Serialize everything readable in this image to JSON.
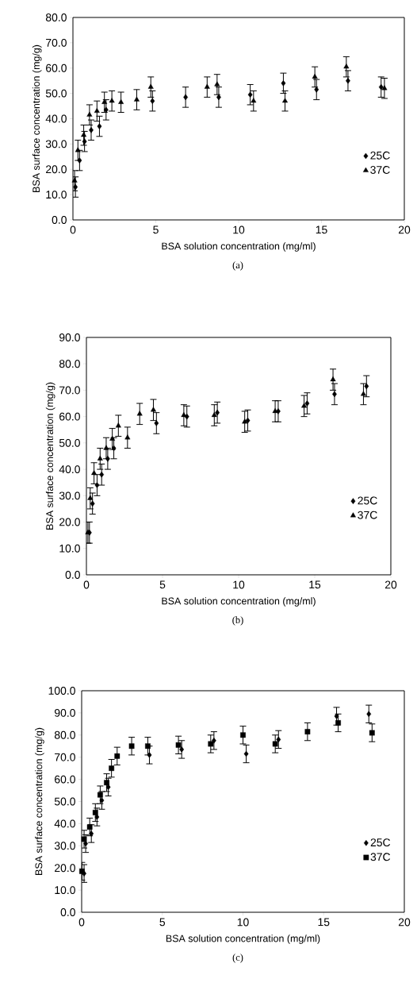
{
  "chart_data": [
    {
      "type": "scatter",
      "xlabel": "BSA solution concentration (mg/ml)",
      "ylabel": "BSA surface concentration (mg/g)",
      "annotations": [
        "(a)"
      ],
      "xlim": [
        0,
        20
      ],
      "xticks": [
        0,
        5,
        10,
        15,
        20
      ],
      "ylim": [
        0,
        80
      ],
      "yticks": [
        {
          "value": 0,
          "label": "0.0"
        },
        {
          "value": 10,
          "label": "10.0"
        },
        {
          "value": 20,
          "label": "20.0"
        },
        {
          "value": 30,
          "label": "30.0"
        },
        {
          "value": 40,
          "label": "40.0"
        },
        {
          "value": 50,
          "label": "50.0"
        },
        {
          "value": 60,
          "label": "60.0"
        },
        {
          "value": 70,
          "label": "70.0"
        },
        {
          "value": 80,
          "label": "80.0"
        }
      ],
      "legend": "right",
      "grid": false,
      "series": [
        {
          "name": "25C",
          "color": "#000000",
          "marker": "diamond",
          "x": [
            0.15,
            0.4,
            0.7,
            1.1,
            1.6,
            2.0,
            4.8,
            6.8,
            8.8,
            10.7,
            12.7,
            14.7,
            16.6,
            18.6
          ],
          "values": [
            13,
            23.5,
            31,
            35.5,
            37,
            43.5,
            47,
            48.5,
            48.5,
            49.5,
            54,
            51.5,
            55,
            52.5
          ],
          "errors": [
            4,
            4,
            4,
            4,
            4,
            4,
            4,
            4,
            4,
            4,
            4,
            4,
            4,
            4
          ]
        },
        {
          "name": "37C",
          "color": "#000000",
          "marker": "triangle",
          "x": [
            0.1,
            0.3,
            0.65,
            1.0,
            1.45,
            1.9,
            2.35,
            2.9,
            3.85,
            4.7,
            8.1,
            8.7,
            10.9,
            12.8,
            14.6,
            16.5,
            18.8
          ],
          "values": [
            15.5,
            27.5,
            33.5,
            41.5,
            43,
            46.5,
            47,
            46.5,
            47.5,
            52.5,
            52.5,
            53.5,
            47,
            47,
            56.5,
            60.5,
            52
          ],
          "errors": [
            4,
            4,
            4,
            4,
            4,
            4,
            4,
            4,
            4,
            4,
            4,
            4,
            4,
            4,
            4,
            4,
            4
          ]
        }
      ]
    },
    {
      "type": "scatter",
      "xlabel": "BSA solution concentration (mg/ml)",
      "ylabel": "BSA surface concentration (mg/g)",
      "annotations": [
        "(b)"
      ],
      "xlim": [
        0,
        20
      ],
      "xticks": [
        0,
        5,
        10,
        15,
        20
      ],
      "ylim": [
        0,
        90
      ],
      "yticks": [
        {
          "value": 0,
          "label": "0.0"
        },
        {
          "value": 10,
          "label": "10.0"
        },
        {
          "value": 20,
          "label": "20.0"
        },
        {
          "value": 30,
          "label": "30.0"
        },
        {
          "value": 40,
          "label": "40.0"
        },
        {
          "value": 50,
          "label": "50.0"
        },
        {
          "value": 60,
          "label": "60.0"
        },
        {
          "value": 70,
          "label": "70.0"
        },
        {
          "value": 80,
          "label": "80.0"
        },
        {
          "value": 90,
          "label": "90.0"
        }
      ],
      "legend": "right",
      "grid": false,
      "series": [
        {
          "name": "25C",
          "color": "#000000",
          "marker": "diamond",
          "x": [
            0.2,
            0.4,
            0.7,
            1.0,
            1.4,
            1.8,
            4.6,
            6.6,
            8.6,
            10.6,
            12.6,
            14.5,
            16.3,
            18.4
          ],
          "values": [
            16,
            27,
            34,
            38,
            44,
            48,
            57.5,
            60,
            61.5,
            58.5,
            62,
            65,
            68.5,
            71.5
          ],
          "errors": [
            4,
            4,
            4,
            4,
            4,
            4,
            4,
            4,
            4,
            4,
            4,
            4,
            4,
            4
          ]
        },
        {
          "name": "37C",
          "color": "#000000",
          "marker": "triangle",
          "x": [
            0.1,
            0.25,
            0.5,
            0.9,
            1.3,
            1.7,
            2.1,
            2.7,
            3.5,
            4.4,
            6.4,
            8.4,
            10.4,
            12.4,
            14.3,
            16.2,
            18.2
          ],
          "values": [
            16,
            29,
            38.5,
            44,
            48,
            51.5,
            56.5,
            52,
            61,
            62.5,
            60.5,
            60.5,
            58,
            62,
            64,
            74,
            68.5
          ],
          "errors": [
            4,
            4,
            4,
            4,
            4,
            4,
            4,
            4,
            4,
            4,
            4,
            4,
            4,
            4,
            4,
            4,
            4
          ]
        }
      ]
    },
    {
      "type": "scatter",
      "xlabel": "BSA solution concentration (mg/ml)",
      "ylabel": "BSA surface concentration (mg/g)",
      "annotations": [
        "(c)"
      ],
      "xlim": [
        0,
        20
      ],
      "xticks": [
        0,
        5,
        10,
        15,
        20
      ],
      "ylim": [
        0,
        100
      ],
      "yticks": [
        {
          "value": 0,
          "label": "0.0"
        },
        {
          "value": 10,
          "label": "10.0"
        },
        {
          "value": 20,
          "label": "20.0"
        },
        {
          "value": 30,
          "label": "30.0"
        },
        {
          "value": 40,
          "label": "40.0"
        },
        {
          "value": 50,
          "label": "50.0"
        },
        {
          "value": 60,
          "label": "60.0"
        },
        {
          "value": 70,
          "label": "70.0"
        },
        {
          "value": 80,
          "label": "80.0"
        },
        {
          "value": 90,
          "label": "90.0"
        },
        {
          "value": 100,
          "label": "100.0"
        }
      ],
      "legend": "right",
      "grid": false,
      "series": [
        {
          "name": "25C",
          "color": "#000000",
          "marker": "diamond",
          "x": [
            0.15,
            0.25,
            0.6,
            0.95,
            1.25,
            1.65,
            4.2,
            6.2,
            8.2,
            10.2,
            12.2,
            15.8,
            17.8
          ],
          "values": [
            17.5,
            31,
            35.5,
            43,
            50.5,
            56.5,
            71,
            73.5,
            77.5,
            71.5,
            78,
            88.5,
            89.5
          ],
          "errors": [
            4,
            4,
            4,
            4,
            4,
            4,
            4,
            4,
            4,
            4,
            4,
            4,
            4
          ]
        },
        {
          "name": "37C",
          "color": "#000000",
          "marker": "square",
          "x": [
            0.02,
            0.15,
            0.5,
            0.85,
            1.15,
            1.55,
            1.85,
            2.2,
            3.1,
            4.1,
            6.0,
            8.0,
            10.0,
            12.0,
            14.0,
            15.9,
            18.0
          ],
          "values": [
            18.5,
            33,
            38.5,
            45,
            53,
            58.5,
            65,
            70.5,
            75,
            75,
            75.5,
            76,
            80,
            76,
            81.5,
            85.5,
            81
          ],
          "errors": [
            4,
            4,
            4,
            4,
            4,
            4,
            4,
            4,
            4,
            4,
            4,
            4,
            4,
            4,
            4,
            4,
            4
          ]
        }
      ]
    }
  ]
}
